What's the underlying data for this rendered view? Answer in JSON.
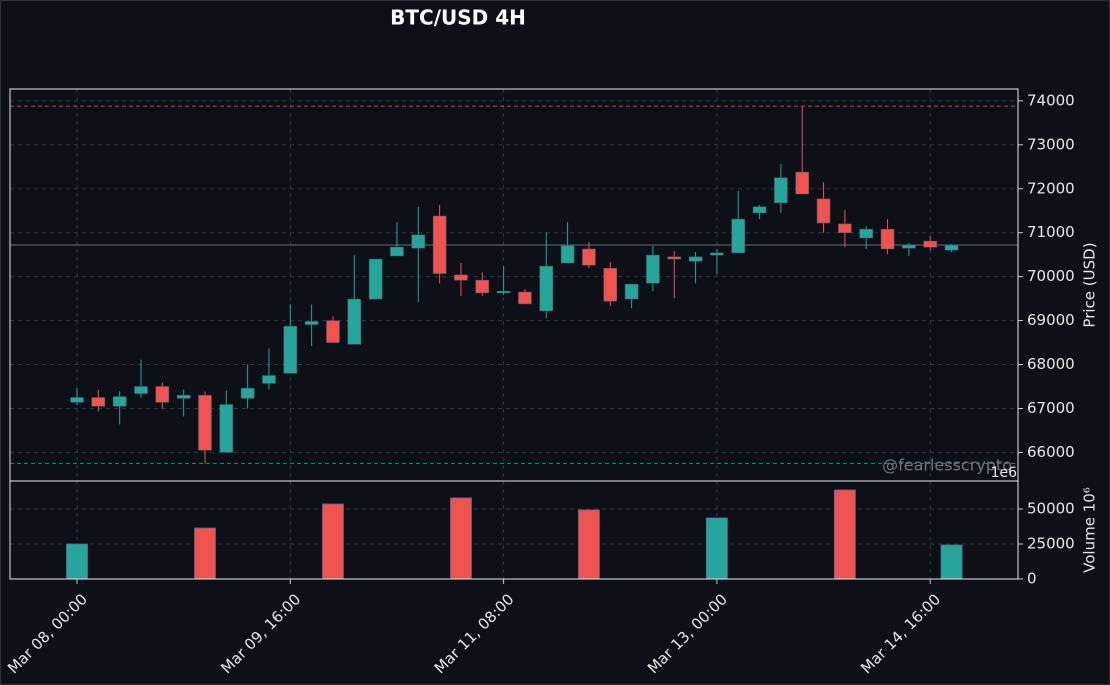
{
  "chart_data": {
    "type": "candlestick",
    "title": "BTC/USD 4H",
    "x": [
      "Mar 08, 00:00",
      "Mar 08, 04:00",
      "Mar 08, 08:00",
      "Mar 08, 12:00",
      "Mar 08, 16:00",
      "Mar 08, 20:00",
      "Mar 09, 00:00",
      "Mar 09, 04:00",
      "Mar 09, 08:00",
      "Mar 09, 12:00",
      "Mar 09, 16:00",
      "Mar 09, 20:00",
      "Mar 10, 00:00",
      "Mar 10, 04:00",
      "Mar 10, 08:00",
      "Mar 10, 12:00",
      "Mar 10, 16:00",
      "Mar 10, 20:00",
      "Mar 11, 00:00",
      "Mar 11, 04:00",
      "Mar 11, 08:00",
      "Mar 11, 12:00",
      "Mar 11, 16:00",
      "Mar 11, 20:00",
      "Mar 12, 00:00",
      "Mar 12, 04:00",
      "Mar 12, 08:00",
      "Mar 12, 12:00",
      "Mar 12, 16:00",
      "Mar 12, 20:00",
      "Mar 13, 00:00",
      "Mar 13, 04:00",
      "Mar 13, 08:00",
      "Mar 13, 12:00",
      "Mar 13, 16:00",
      "Mar 13, 20:00",
      "Mar 14, 00:00",
      "Mar 14, 04:00",
      "Mar 14, 08:00",
      "Mar 14, 12:00",
      "Mar 14, 16:00",
      "Mar 14, 20:00"
    ],
    "open": [
      67140,
      67250,
      67050,
      67340,
      67500,
      67230,
      67300,
      66000,
      67230,
      67570,
      67800,
      68910,
      69000,
      68460,
      69490,
      70470,
      70650,
      71380,
      70040,
      69920,
      69630,
      69650,
      69220,
      70310,
      70630,
      70190,
      69490,
      69850,
      70450,
      70350,
      70490,
      70540,
      71450,
      71680,
      72380,
      71770,
      71200,
      70880,
      71080,
      70650,
      70810,
      70600
    ],
    "high": [
      67460,
      67430,
      67390,
      68110,
      67590,
      67430,
      67390,
      67410,
      68000,
      68370,
      69370,
      69370,
      69100,
      70490,
      70400,
      71240,
      71590,
      71630,
      70310,
      70100,
      70230,
      69720,
      71010,
      71240,
      70790,
      70330,
      69830,
      70700,
      70580,
      70560,
      70630,
      71950,
      71630,
      72560,
      73880,
      72150,
      71520,
      71150,
      71310,
      70770,
      70920,
      70740
    ],
    "low": [
      67070,
      66930,
      66640,
      67250,
      67000,
      66820,
      65750,
      65990,
      67000,
      67430,
      67800,
      68420,
      68510,
      68460,
      69490,
      70470,
      69420,
      69850,
      69560,
      69560,
      69580,
      69380,
      69060,
      70310,
      70190,
      69330,
      69280,
      69670,
      69510,
      69850,
      70060,
      70540,
      71310,
      71450,
      71880,
      71000,
      70670,
      70630,
      70510,
      70470,
      70600,
      70560
    ],
    "close": [
      67250,
      67050,
      67270,
      67500,
      67140,
      67300,
      66050,
      67090,
      67460,
      67750,
      68870,
      68980,
      68500,
      69490,
      70400,
      70670,
      70950,
      70070,
      69920,
      69630,
      69670,
      69380,
      70240,
      70700,
      70260,
      69440,
      69830,
      70490,
      70400,
      70450,
      70540,
      71310,
      71590,
      72250,
      71880,
      71220,
      71000,
      71080,
      70630,
      70720,
      70670,
      70720
    ],
    "volume": [
      25000,
      null,
      null,
      null,
      null,
      null,
      36400,
      null,
      null,
      null,
      null,
      null,
      53600,
      null,
      null,
      null,
      null,
      null,
      57900,
      null,
      null,
      null,
      null,
      null,
      49300,
      null,
      null,
      null,
      null,
      null,
      43600,
      null,
      null,
      null,
      null,
      null,
      63600,
      null,
      null,
      null,
      null,
      24300
    ],
    "up_color": "#26a69a",
    "down_color": "#ef5350",
    "ylim": [
      65350,
      74270
    ],
    "yticks": [
      66000,
      67000,
      68000,
      69000,
      70000,
      71000,
      72000,
      73000,
      74000
    ],
    "y_label": "Price (USD)",
    "y2lim": [
      0,
      70000
    ],
    "y2ticks": [
      0,
      25000,
      50000
    ],
    "y2_label": "Volume  10⁶",
    "y2_offset_label": "1e6",
    "hlines": [
      {
        "value": 73880,
        "color": "#ef5350"
      },
      {
        "value": 65750,
        "color": "#26a69a"
      },
      {
        "value": 70720,
        "color": "#8b949e"
      }
    ],
    "watermark": "@fearlesscrypto",
    "grid": true
  }
}
